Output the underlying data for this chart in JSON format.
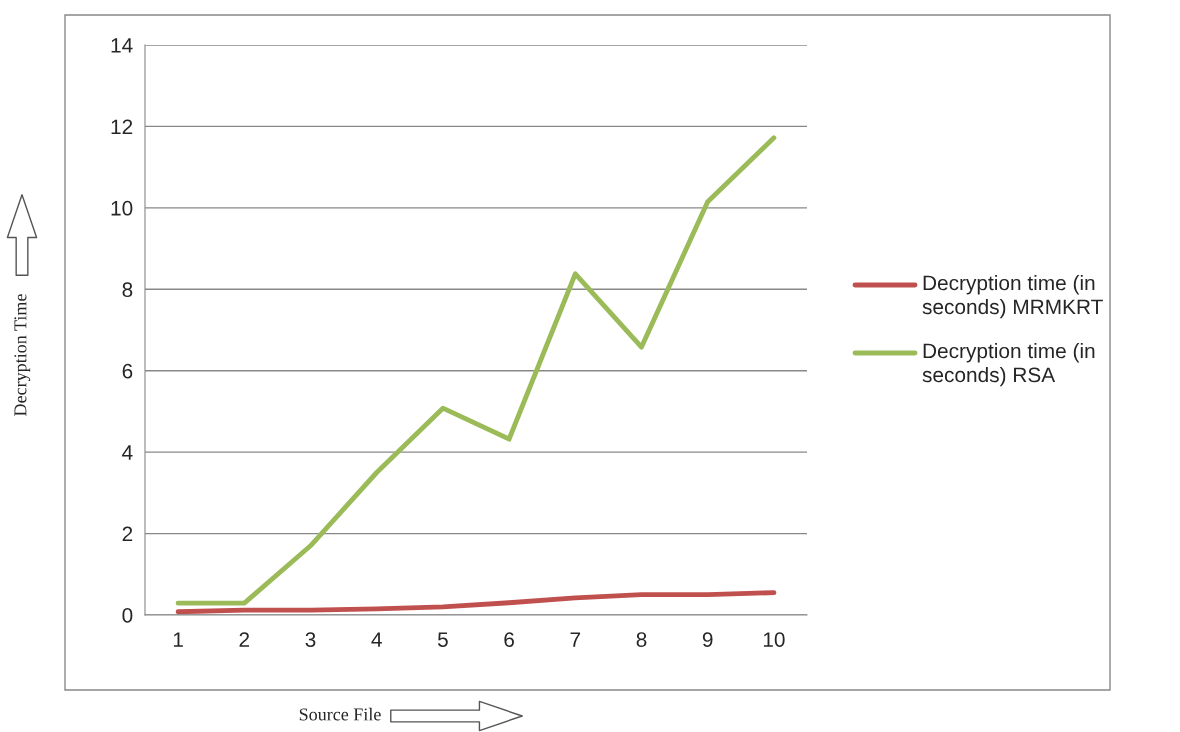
{
  "chart_data": {
    "type": "line",
    "xlabel": "Source File",
    "ylabel": "Decryption Time",
    "categories": [
      "1",
      "2",
      "3",
      "4",
      "5",
      "6",
      "7",
      "8",
      "9",
      "10"
    ],
    "series": [
      {
        "name": "Decryption time (in seconds) MRMKRT",
        "color": "#c0504d",
        "values": [
          0.08,
          0.12,
          0.12,
          0.15,
          0.2,
          0.3,
          0.42,
          0.5,
          0.5,
          0.55
        ]
      },
      {
        "name": "Decryption time (in seconds) RSA",
        "color": "#9bbb59",
        "values": [
          0.29,
          0.29,
          1.7,
          3.5,
          5.08,
          4.32,
          8.38,
          6.58,
          10.15,
          11.72
        ]
      }
    ],
    "ylim": [
      0,
      14
    ],
    "yticks": [
      0,
      2,
      4,
      6,
      8,
      10,
      12,
      14
    ],
    "grid": "y",
    "legend": "right",
    "line_style": "solid",
    "marker": "none"
  }
}
